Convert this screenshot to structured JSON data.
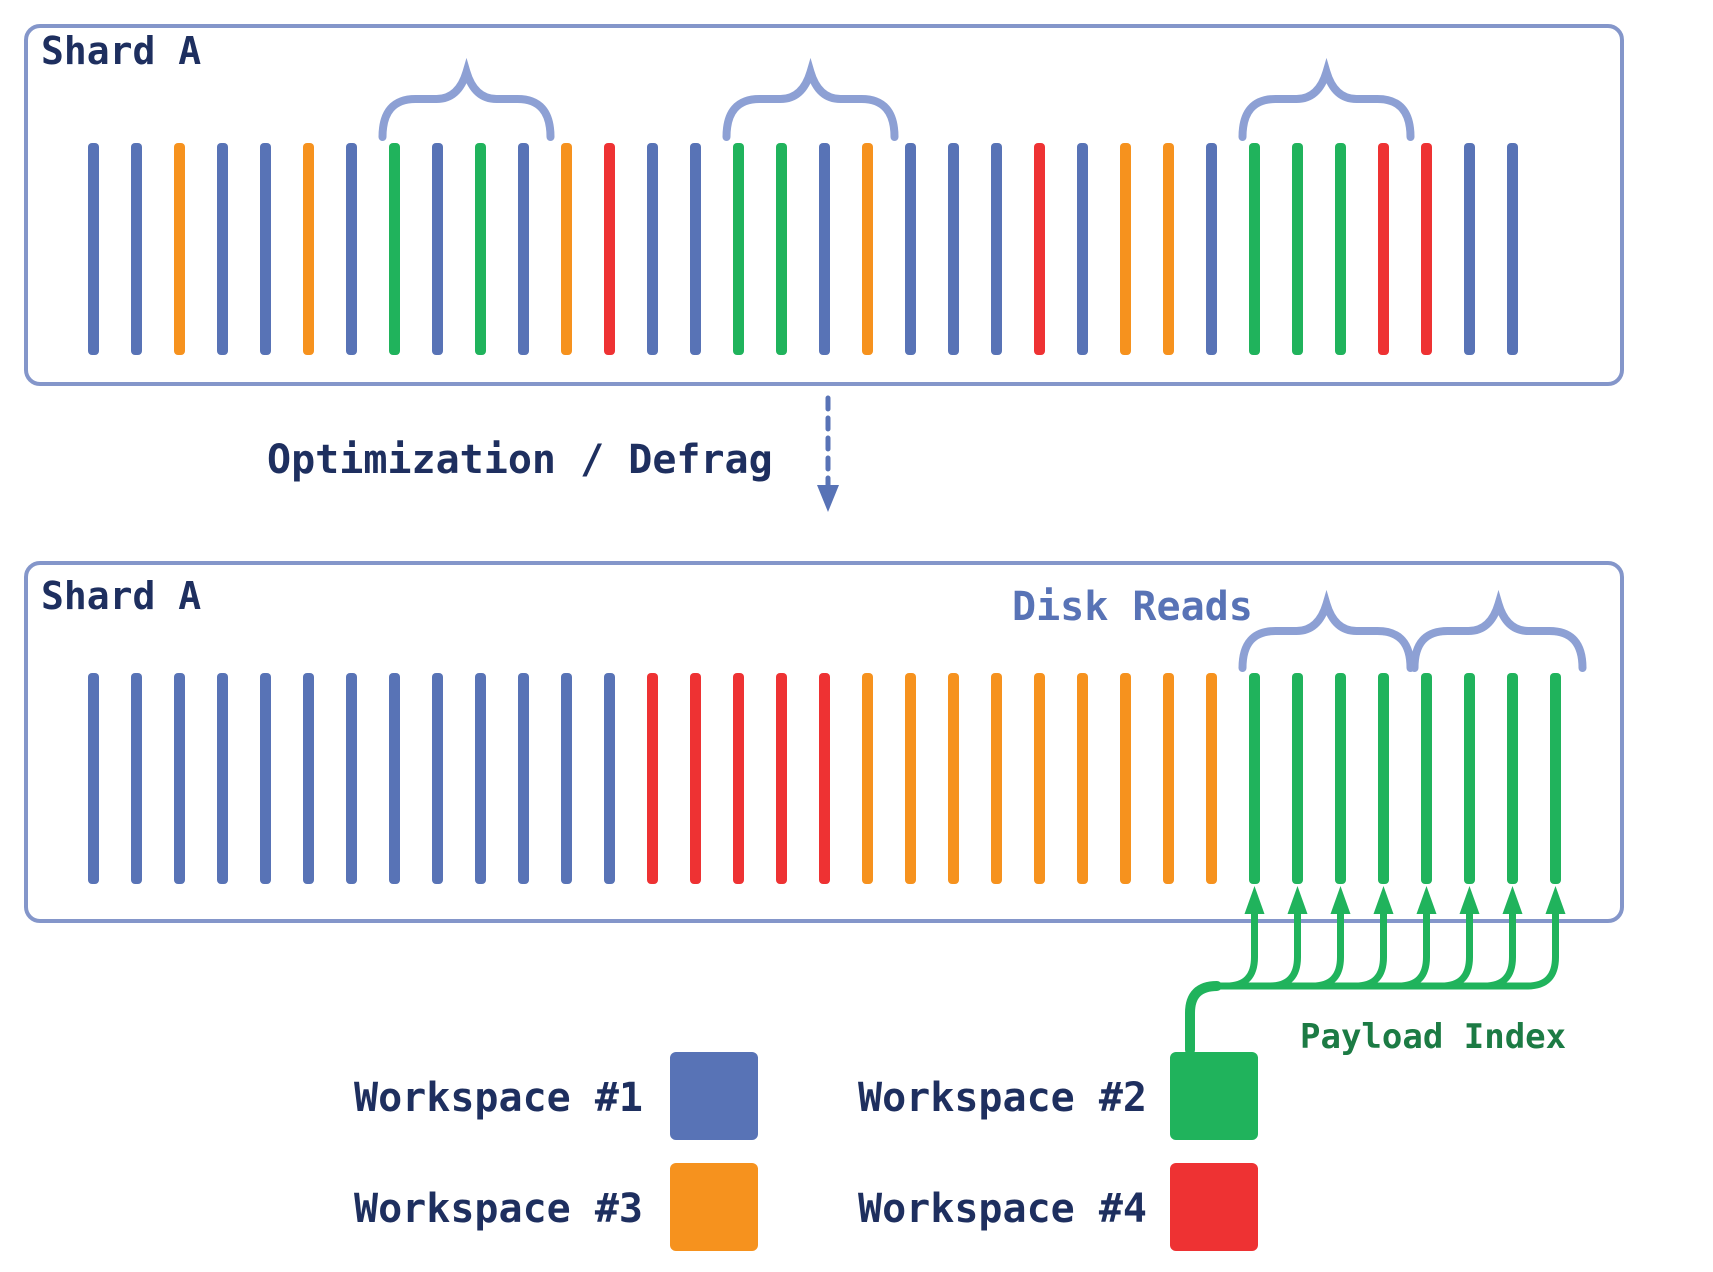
{
  "colors": {
    "workspace1": "#5873b6",
    "workspace2": "#20b35c",
    "workspace3": "#f6921e",
    "workspace4": "#ee3233",
    "box_border": "#8496ca",
    "brace": "#8da0d4",
    "navy_text": "#1e2f5f",
    "disk_reads_text": "#5873b6",
    "payload_text": "#1c7b44",
    "arrow_green": "#20b35c",
    "dashed_arrow": "#5873b6"
  },
  "top_box": {
    "title": "Shard A",
    "segments": [
      1,
      1,
      3,
      1,
      1,
      3,
      1,
      2,
      1,
      2,
      1,
      3,
      4,
      1,
      1,
      2,
      2,
      1,
      3,
      1,
      1,
      1,
      4,
      1,
      3,
      3,
      1,
      2,
      2,
      2,
      4,
      4,
      1,
      1
    ],
    "read_groups": [
      [
        7,
        10
      ],
      [
        15,
        18
      ],
      [
        27,
        30
      ]
    ]
  },
  "transition": {
    "label": "Optimization / Defrag"
  },
  "bottom_box": {
    "title": "Shard A",
    "disk_reads_label": "Disk Reads",
    "segments": [
      1,
      1,
      1,
      1,
      1,
      1,
      1,
      1,
      1,
      1,
      1,
      1,
      1,
      4,
      4,
      4,
      4,
      4,
      3,
      3,
      3,
      3,
      3,
      3,
      3,
      3,
      3,
      2,
      2,
      2,
      2,
      2,
      2,
      2,
      2
    ],
    "read_groups": [
      [
        27,
        30
      ],
      [
        31,
        34
      ]
    ]
  },
  "payload_index": {
    "label": "Payload Index"
  },
  "legend": {
    "items": [
      {
        "label": "Workspace #1",
        "workspace": 1
      },
      {
        "label": "Workspace #2",
        "workspace": 2
      },
      {
        "label": "Workspace #3",
        "workspace": 3
      },
      {
        "label": "Workspace #4",
        "workspace": 4
      }
    ]
  }
}
